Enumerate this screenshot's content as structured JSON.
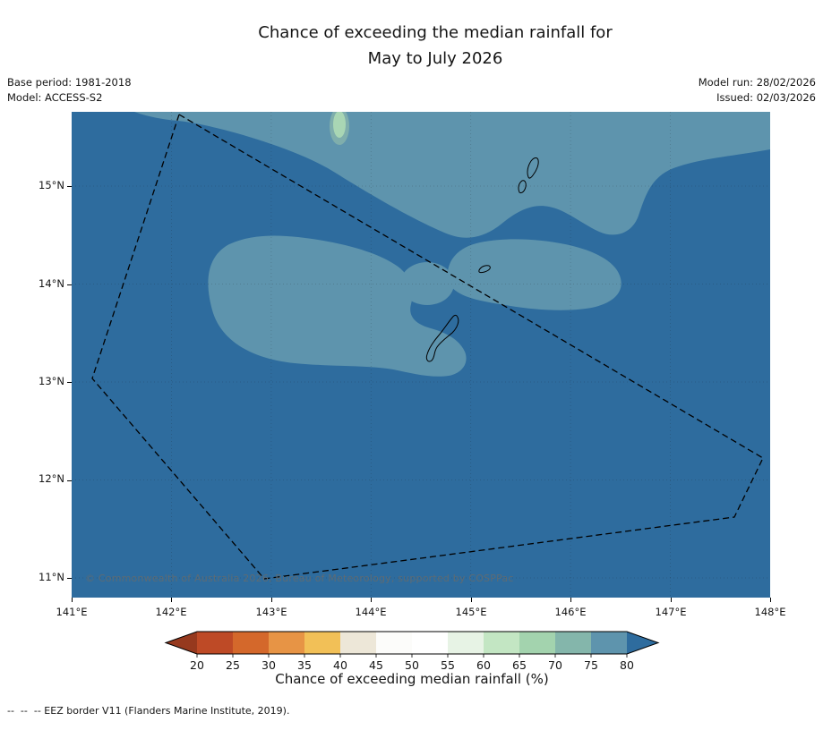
{
  "title": {
    "line1": "Chance of exceeding the median rainfall for",
    "line2": "May to July 2026"
  },
  "meta": {
    "base_period": "Base period: 1981-2018",
    "model": "Model: ACCESS-S2",
    "model_run": "Model run: 28/02/2026",
    "issued": "Issued: 02/03/2026"
  },
  "map": {
    "x_ticks": [
      "141°E",
      "142°E",
      "143°E",
      "144°E",
      "145°E",
      "146°E",
      "147°E",
      "148°E"
    ],
    "y_ticks": [
      "15°N",
      "14°N",
      "13°N",
      "12°N",
      "11°N"
    ],
    "copyright": "© Commonwealth of Australia 2026, Bureau of Meteorology, supported by COSPPac",
    "colors": {
      "above_80": "#2E6C9E",
      "band_75_80": "#5E94AD",
      "patch_70_75": "#7FAEAC",
      "patch_60_70": "#A9D6B4"
    }
  },
  "colorbar": {
    "tick_labels": [
      "20",
      "25",
      "30",
      "35",
      "40",
      "45",
      "50",
      "55",
      "60",
      "65",
      "70",
      "75",
      "80"
    ],
    "colors": [
      "#96391E",
      "#BE4A26",
      "#D4682B",
      "#E79445",
      "#F2C057",
      "#EDE7D8",
      "#FCFCFA",
      "#FFFFFF",
      "#E7F3E5",
      "#C3E6C3",
      "#A3D3AE",
      "#84B6AB",
      "#5E94AD",
      "#2E6C9E"
    ],
    "caption": "Chance of exceeding median rainfall (%)"
  },
  "footer": {
    "eez_note": "--  --  -- EEZ border V11 (Flanders Marine Institute, 2019)."
  }
}
